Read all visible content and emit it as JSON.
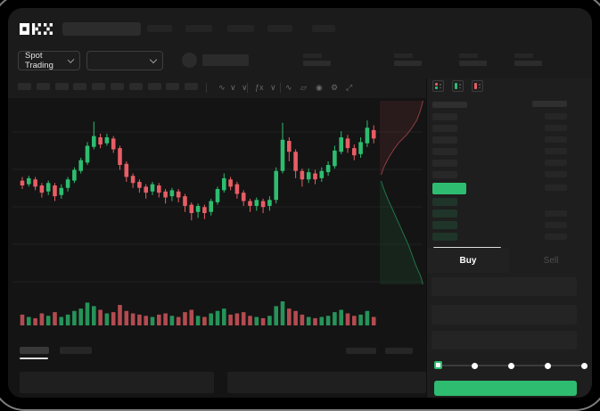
{
  "window": {
    "app": "OKX spot trading terminal"
  },
  "colors": {
    "up_green": "#2ebd70",
    "down_red": "#e85d65",
    "card_bg": "#1b1b1b",
    "chart_bg": "#141414",
    "panel_bg": "#1e1e1e"
  },
  "header": {
    "brand": "OKX",
    "nav_placeholder_count": 5,
    "has_search_placeholder": true
  },
  "market_bar": {
    "market_selector_label": "Spot Trading",
    "pair_dropdown_value": "",
    "ticker_stat_placeholder_count": 4
  },
  "chart_toolbar": {
    "placeholder_button_count": 10,
    "icons": [
      {
        "name": "candle-style-icon",
        "glyph": "∿"
      },
      {
        "name": "candle-style-chevron-icon",
        "glyph": "∨"
      },
      {
        "name": "timeframe-chevron-icon",
        "glyph": "∨"
      },
      {
        "name": "indicators-icon",
        "glyph": "ƒx"
      },
      {
        "name": "indicators-chevron-icon",
        "glyph": "∨"
      },
      {
        "name": "line-tool-icon",
        "glyph": "∿"
      },
      {
        "name": "compare-icon",
        "glyph": "▱"
      },
      {
        "name": "snapshot-camera-icon",
        "glyph": "◉"
      },
      {
        "name": "settings-gear-icon",
        "glyph": "⚙"
      },
      {
        "name": "fullscreen-icon",
        "glyph": "⤢"
      }
    ]
  },
  "orderbook": {
    "view_icons": [
      "book-combined-icon",
      "book-bids-only-icon",
      "book-asks-only-icon"
    ],
    "ask_row_count": 6,
    "bid_row_count": 4,
    "last_price_highlighted": true,
    "last_price_highlight_color": "#2ebd70"
  },
  "trade_panel": {
    "buy_tab_label": "Buy",
    "sell_tab_label": "Sell",
    "active_tab": "Buy",
    "input_field_count": 3,
    "amount_slider": {
      "steps": 5,
      "active_step": 0
    },
    "submit_button_color": "#2ebd70"
  },
  "bottom_panel": {
    "tab_placeholder_count": 2,
    "active_tab_index": 0,
    "right_placeholder_count": 2,
    "content_row_count": 2
  },
  "chart_data": {
    "type": "candlestick",
    "note": "wireframe chart, no axis labels visible; values on relative 0-100 price scale",
    "candle_format": "[open, close, high, low]",
    "up_color": "#2ebd70",
    "down_color": "#e85d65",
    "grid": true,
    "candles": [
      [
        44,
        40,
        47,
        37
      ],
      [
        41,
        46,
        48,
        39
      ],
      [
        45,
        39,
        47,
        36
      ],
      [
        40,
        34,
        42,
        30
      ],
      [
        35,
        42,
        44,
        32
      ],
      [
        40,
        31,
        42,
        27
      ],
      [
        32,
        38,
        41,
        29
      ],
      [
        38,
        45,
        47,
        35
      ],
      [
        44,
        53,
        55,
        42
      ],
      [
        52,
        61,
        63,
        50
      ],
      [
        59,
        73,
        76,
        57
      ],
      [
        72,
        81,
        93,
        70
      ],
      [
        80,
        74,
        83,
        71
      ],
      [
        75,
        80,
        83,
        73
      ],
      [
        79,
        70,
        81,
        67
      ],
      [
        71,
        57,
        73,
        53
      ],
      [
        58,
        47,
        60,
        43
      ],
      [
        48,
        42,
        50,
        38
      ],
      [
        43,
        38,
        45,
        34
      ],
      [
        39,
        34,
        41,
        29
      ],
      [
        35,
        41,
        43,
        32
      ],
      [
        40,
        34,
        42,
        30
      ],
      [
        35,
        30,
        37,
        25
      ],
      [
        31,
        36,
        38,
        27
      ],
      [
        35,
        30,
        37,
        26
      ],
      [
        31,
        23,
        33,
        18
      ],
      [
        24,
        17,
        26,
        11
      ],
      [
        18,
        23,
        25,
        13
      ],
      [
        22,
        17,
        24,
        12
      ],
      [
        18,
        27,
        29,
        15
      ],
      [
        26,
        37,
        39,
        24
      ],
      [
        36,
        46,
        50,
        34
      ],
      [
        45,
        39,
        47,
        36
      ],
      [
        41,
        33,
        43,
        29
      ],
      [
        34,
        27,
        36,
        23
      ],
      [
        27,
        23,
        29,
        18
      ],
      [
        23,
        28,
        30,
        19
      ],
      [
        27,
        22,
        29,
        17
      ],
      [
        23,
        28,
        31,
        19
      ],
      [
        28,
        52,
        55,
        25
      ],
      [
        52,
        78,
        92,
        50
      ],
      [
        77,
        68,
        80,
        60
      ],
      [
        68,
        52,
        70,
        46
      ],
      [
        52,
        45,
        54,
        39
      ],
      [
        45,
        51,
        54,
        42
      ],
      [
        50,
        45,
        53,
        41
      ],
      [
        46,
        52,
        55,
        43
      ],
      [
        51,
        57,
        60,
        48
      ],
      [
        56,
        69,
        73,
        54
      ],
      [
        68,
        80,
        85,
        66
      ],
      [
        79,
        71,
        82,
        67
      ],
      [
        71,
        65,
        74,
        61
      ],
      [
        66,
        76,
        80,
        63
      ],
      [
        75,
        88,
        94,
        72
      ],
      [
        86,
        79,
        90,
        75
      ]
    ],
    "volume_pct": [
      45,
      35,
      30,
      50,
      40,
      55,
      35,
      45,
      60,
      70,
      95,
      80,
      65,
      50,
      55,
      85,
      60,
      50,
      45,
      40,
      35,
      45,
      50,
      40,
      35,
      55,
      65,
      40,
      35,
      50,
      60,
      70,
      45,
      50,
      55,
      40,
      35,
      30,
      40,
      80,
      100,
      70,
      60,
      45,
      35,
      30,
      35,
      40,
      55,
      65,
      50,
      40,
      45,
      60,
      35
    ],
    "depth_overlay": {
      "asks_curve": [
        [
          0.93,
          0
        ],
        [
          0.9,
          0.08
        ],
        [
          0.86,
          0.16
        ],
        [
          0.8,
          0.26
        ],
        [
          0.7,
          0.36
        ],
        [
          0.58,
          0.46
        ],
        [
          0.42,
          0.56
        ],
        [
          0.3,
          0.66
        ],
        [
          0.2,
          0.76
        ],
        [
          0.1,
          0.88
        ],
        [
          0.03,
          1
        ]
      ],
      "bids_curve": [
        [
          0.03,
          0
        ],
        [
          0.08,
          0.07
        ],
        [
          0.16,
          0.16
        ],
        [
          0.28,
          0.28
        ],
        [
          0.4,
          0.4
        ],
        [
          0.52,
          0.52
        ],
        [
          0.62,
          0.62
        ],
        [
          0.7,
          0.72
        ],
        [
          0.78,
          0.82
        ],
        [
          0.88,
          0.92
        ],
        [
          0.93,
          1
        ]
      ]
    }
  }
}
